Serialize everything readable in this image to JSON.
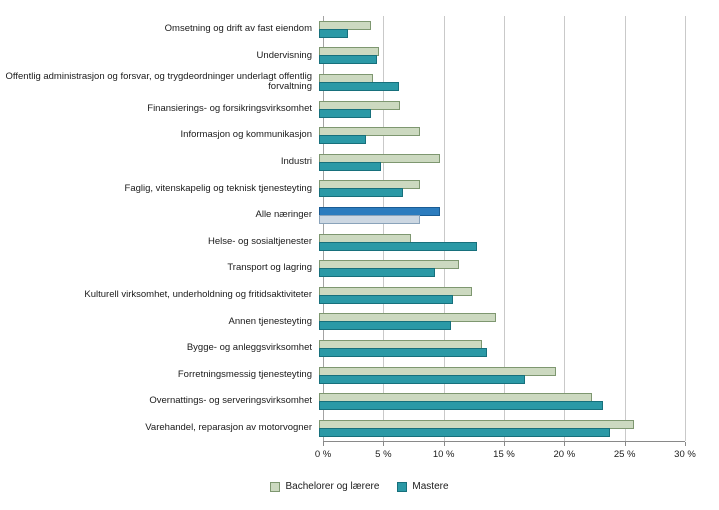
{
  "chart_data": {
    "type": "bar",
    "orientation": "horizontal",
    "title": "",
    "xlabel": "",
    "ylabel": "",
    "xlim": [
      0,
      30
    ],
    "grid": "vertical",
    "legend_position": "bottom",
    "categories": [
      "Omsetning og drift av fast eiendom",
      "Undervisning",
      "Offentlig administrasjon og forsvar, og trygdeordninger underlagt offentlig forvaltning",
      "Finansierings- og forsikringsvirksomhet",
      "Informasjon og kommunikasjon",
      "Industri",
      "Faglig, vitenskapelig og teknisk tjenesteyting",
      "Alle næringer",
      "Helse- og sosialtjenester",
      "Transport og lagring",
      "Kulturell virksomhet, underholdning og fritidsaktiviteter",
      "Annen tjenesteyting",
      "Bygge- og anleggsvirksomhet",
      "Forretningsmessig tjenesteyting",
      "Overnattings- og serveringsvirksomhet",
      "Varehandel, reparasjon av motorvogner"
    ],
    "series": [
      {
        "name": "Bachelorer og lærere",
        "color": "#ccd9c0",
        "border": "#7e9770",
        "values": [
          4.3,
          5.0,
          4.5,
          6.7,
          8.4,
          10.0,
          8.4,
          10.0,
          7.6,
          11.6,
          12.7,
          14.7,
          13.5,
          19.6,
          22.6,
          26.1
        ]
      },
      {
        "name": "Mastere",
        "color": "#2b99a6",
        "border": "#17707c",
        "values": [
          2.4,
          4.8,
          6.6,
          4.3,
          3.9,
          5.1,
          7.0,
          8.4,
          13.1,
          9.6,
          11.1,
          10.9,
          13.9,
          17.1,
          23.5,
          24.1
        ]
      }
    ],
    "highlight": {
      "category": "Alle næringer",
      "colors": [
        {
          "color": "#2c7cbe",
          "border": "#1a5c94"
        },
        {
          "color": "#ccd7e2",
          "border": "#8aa3ba"
        }
      ]
    },
    "x_ticks": [
      {
        "value": 0,
        "label": "0 %"
      },
      {
        "value": 5,
        "label": "5 %"
      },
      {
        "value": 10,
        "label": "10 %"
      },
      {
        "value": 15,
        "label": "15 %"
      },
      {
        "value": 20,
        "label": "20 %"
      },
      {
        "value": 25,
        "label": "25 %"
      },
      {
        "value": 30,
        "label": "30 %"
      }
    ]
  }
}
